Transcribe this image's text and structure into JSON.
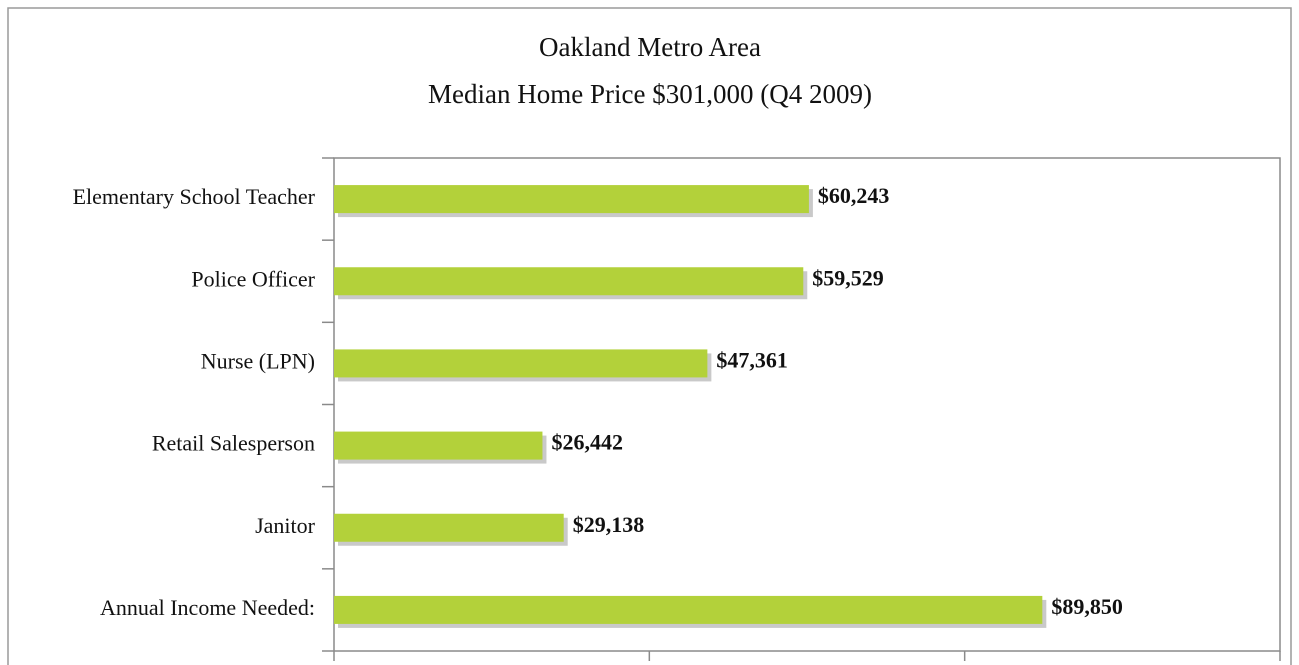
{
  "chart_data": {
    "type": "bar",
    "orientation": "horizontal",
    "title": "Oakland Metro Area",
    "subtitle": "Median Home Price $301,000 (Q4 2009)",
    "categories": [
      "Elementary School Teacher",
      "Police Officer",
      "Nurse (LPN)",
      "Retail Salesperson",
      "Janitor",
      "Annual Income Needed:"
    ],
    "values": [
      60243,
      59529,
      47361,
      26442,
      29138,
      89850
    ],
    "value_labels": [
      "$60,243",
      "$59,529",
      "$47,361",
      "$26,442",
      "$29,138",
      "$89,850"
    ],
    "color": "#b3d13a",
    "xlim": [
      0,
      120000
    ],
    "xticks": [
      0,
      40000,
      80000,
      120000
    ],
    "grid": false
  }
}
